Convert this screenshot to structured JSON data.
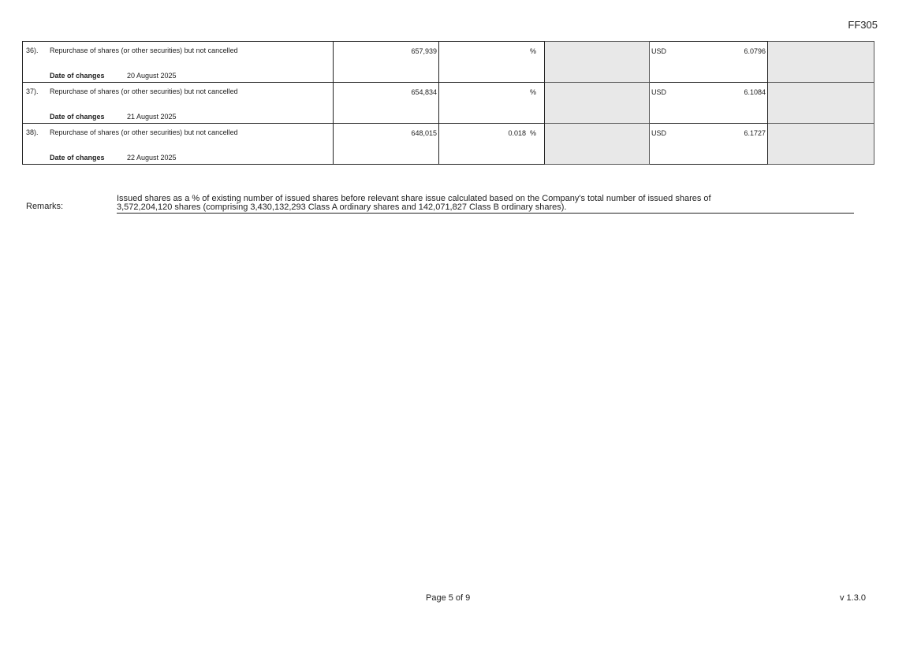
{
  "form_code": "FF305",
  "rows": [
    {
      "no": "36).",
      "description": "Repurchase of shares (or other securities) but not cancelled",
      "date_label": "Date of changes",
      "date": "20 August 2025",
      "shares": "657,939",
      "percent": "",
      "percent_sign": "%",
      "currency": "USD",
      "price": "6.0796"
    },
    {
      "no": "37).",
      "description": "Repurchase of shares (or other securities) but not cancelled",
      "date_label": "Date of changes",
      "date": "21 August 2025",
      "shares": "654,834",
      "percent": "",
      "percent_sign": "%",
      "currency": "USD",
      "price": "6.1084"
    },
    {
      "no": "38).",
      "description": "Repurchase of shares (or other securities) but not cancelled",
      "date_label": "Date of changes",
      "date": "22 August 2025",
      "shares": "648,015",
      "percent": "0.018",
      "percent_sign": "%",
      "currency": "USD",
      "price": "6.1727"
    }
  ],
  "remarks": {
    "label": "Remarks:",
    "line1": "Issued shares as a % of existing number of issued shares before relevant share issue calculated based on the Company's total number of issued shares of",
    "line2": "3,572,204,120 shares (comprising 3,430,132,293 Class A ordinary shares and 142,071,827 Class B ordinary shares)."
  },
  "footer": {
    "page": "Page 5 of 9",
    "version": "v 1.3.0"
  }
}
